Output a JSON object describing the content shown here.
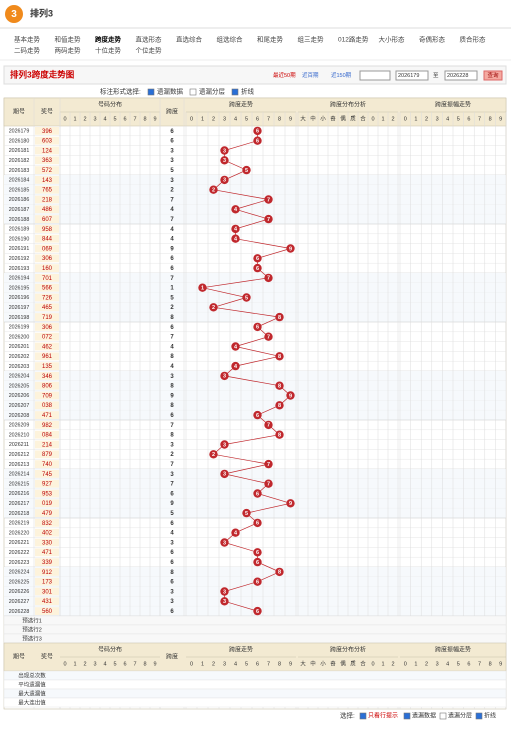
{
  "header": {
    "logo": "3",
    "title": "排列3"
  },
  "nav": [
    "基本走势",
    "和值走势",
    "跨度走势",
    "直选形态",
    "直选综合",
    "组选综合",
    "和尾走势",
    "组三走势",
    "012路走势",
    "大小形态",
    "奇偶形态",
    "质合形态",
    "二码走势",
    "两码走势",
    "十位走势",
    "个位走势"
  ],
  "nav_active": 2,
  "toolbar": {
    "title": "排列3跨度走势图",
    "ranges": [
      "最近50期",
      "近百期",
      "近150期"
    ],
    "period_from": "2026179",
    "to": "至",
    "period_to": "2026228",
    "search": "查询"
  },
  "options": {
    "label": "标注形式选择:",
    "items": [
      "遗漏数据",
      "遗漏分层",
      "折线"
    ],
    "checked": [
      true,
      false,
      true
    ]
  },
  "table": {
    "headers": {
      "period": "期号",
      "number": "奖号",
      "dist": "号码分布",
      "span": "跨度",
      "trend": "跨度走势",
      "analysis": "跨度分布分析",
      "amp": "跨度振幅走势"
    },
    "span_axis": [
      0,
      1,
      2,
      3,
      4,
      5,
      6,
      7,
      8,
      9
    ],
    "analysis_cols": [
      "大",
      "中",
      "小",
      "奇",
      "偶",
      "质",
      "合",
      "0",
      "1",
      "2"
    ],
    "periods": [
      "2026179",
      "2026180",
      "2026181",
      "2026182",
      "2026183",
      "2026184",
      "2026185",
      "2026186",
      "2026187",
      "2026188",
      "2026189",
      "2026190",
      "2026191",
      "2026192",
      "2026193",
      "2026194",
      "2026195",
      "2026196",
      "2026197",
      "2026198",
      "2026199",
      "2026200",
      "2026201",
      "2026202",
      "2026203",
      "2026204",
      "2026205",
      "2026206",
      "2026207",
      "2026208",
      "2026209",
      "2026210",
      "2026211",
      "2026212",
      "2026213",
      "2026214",
      "2026215",
      "2026216",
      "2026217",
      "2026218",
      "2026219",
      "2026220",
      "2026221",
      "2026222",
      "2026223",
      "2026224",
      "2026225",
      "2026226",
      "2026227",
      "2026228"
    ],
    "numbers": [
      "396",
      "603",
      "124",
      "363",
      "572",
      "143",
      "765",
      "218",
      "486",
      "607",
      "958",
      "844",
      "069",
      "306",
      "160",
      "701",
      "566",
      "726",
      "465",
      "719",
      "306",
      "072",
      "462",
      "961",
      "135",
      "346",
      "806",
      "709",
      "038",
      "471",
      "982",
      "084",
      "214",
      "879",
      "740",
      "745",
      "927",
      "953",
      "019",
      "479",
      "832",
      "402",
      "330",
      "471",
      "339",
      "912",
      "173",
      "301",
      "431",
      "560"
    ],
    "spans": [
      6,
      6,
      3,
      3,
      5,
      3,
      2,
      7,
      4,
      7,
      4,
      4,
      9,
      6,
      6,
      7,
      1,
      5,
      2,
      8,
      6,
      7,
      4,
      8,
      4,
      3,
      8,
      9,
      8,
      6,
      7,
      8,
      3,
      2,
      7,
      3,
      7,
      6,
      9,
      5,
      6,
      4,
      3,
      6,
      6,
      8,
      6,
      3,
      3,
      6
    ],
    "preselect": [
      "预选行1",
      "预选行2",
      "预选行3"
    ],
    "stats": [
      "出现总次数",
      "平均遗漏值",
      "最大遗漏值",
      "最大连出值"
    ]
  },
  "footer": {
    "label": "选择:",
    "items": [
      "只看行提示",
      "遗漏数据",
      "遗漏分层",
      "折线"
    ],
    "checked": [
      true,
      true,
      false,
      true
    ]
  }
}
